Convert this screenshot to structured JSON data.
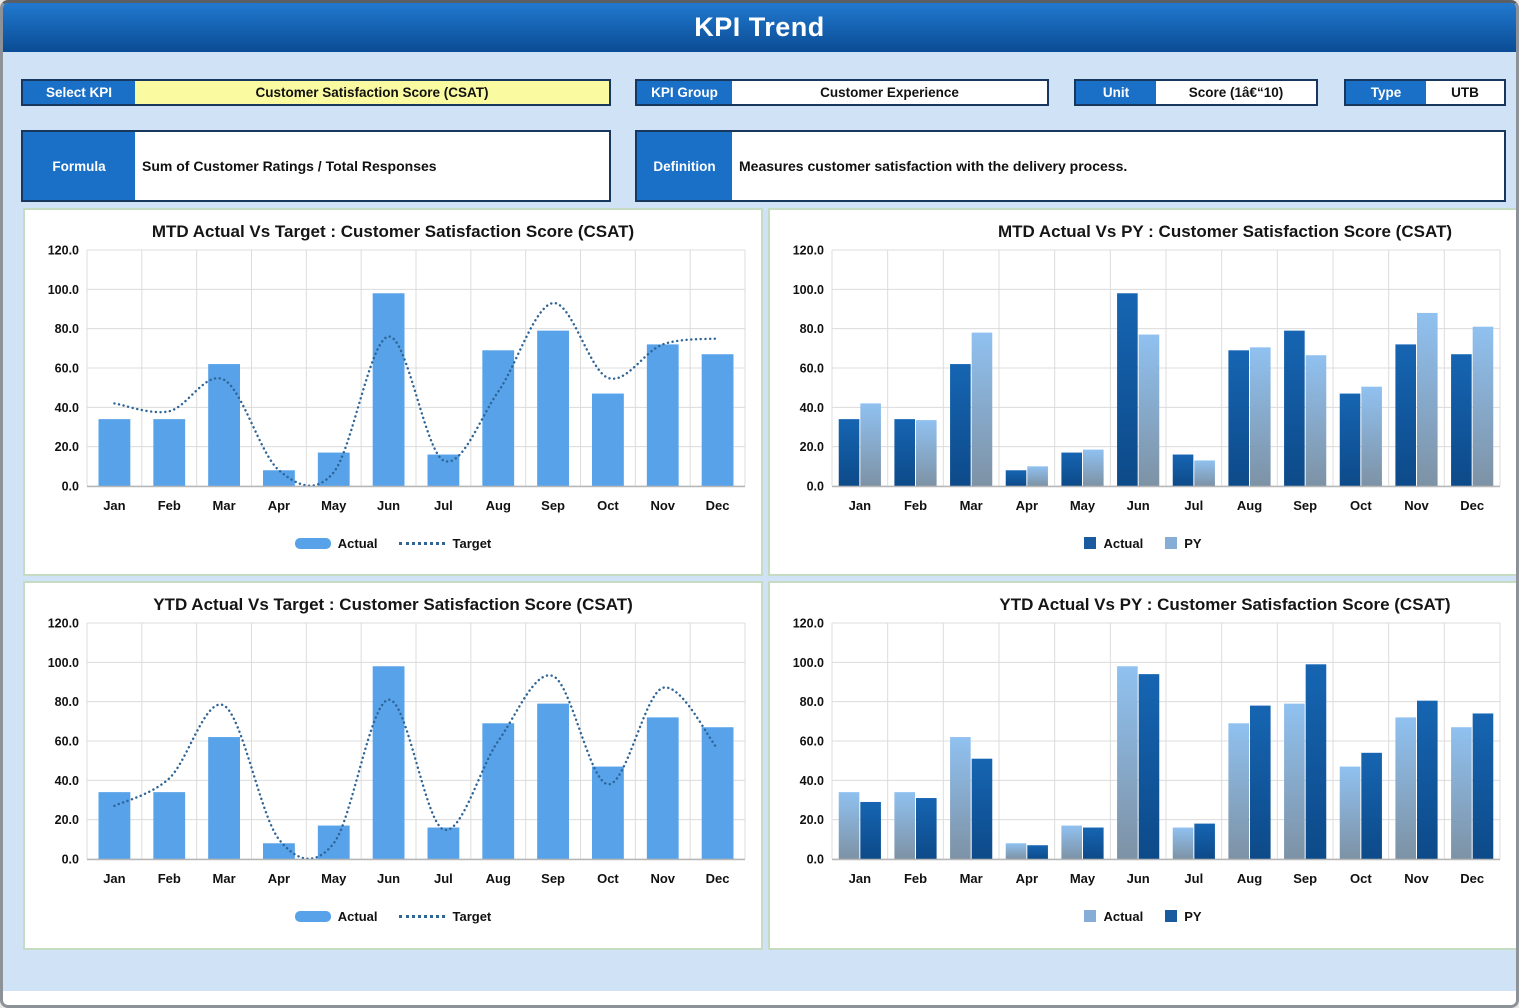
{
  "header": {
    "title": "KPI Trend"
  },
  "controls": {
    "select_kpi": {
      "label": "Select KPI",
      "value": "Customer Satisfaction Score (CSAT)"
    },
    "kpi_group": {
      "label": "KPI Group",
      "value": "Customer Experience"
    },
    "unit": {
      "label": "Unit",
      "value": "Score (1â€“10)"
    },
    "type": {
      "label": "Type",
      "value": "UTB"
    },
    "formula": {
      "label": "Formula",
      "value": "Sum of Customer Ratings / Total Responses"
    },
    "definition": {
      "label": "Definition",
      "value": "Measures customer satisfaction with the delivery process."
    }
  },
  "colors": {
    "page_bg": "#cfe2f6",
    "label_blue": "#1a70c7",
    "navy_border": "#17375e",
    "select_value_bg": "#fafaa0",
    "grid": "#dcdcdc",
    "axis": "#b7b7b7",
    "bar_light": "#57a2e8",
    "bar_dark_top": "#1665b2",
    "bar_dark_bottom": "#0d4a89",
    "bar_grad_top": "#90c1f0",
    "bar_grad_bottom": "#7d92a5",
    "target_line": "#2e6496",
    "legend_dark_swatch": "#1a5a9e",
    "legend_light_swatch": "#85add6"
  },
  "chart_data": [
    {
      "type": "bar",
      "title": "MTD Actual Vs Target : Customer Satisfaction Score (CSAT)",
      "categories": [
        "Jan",
        "Feb",
        "Mar",
        "Apr",
        "May",
        "Jun",
        "Jul",
        "Aug",
        "Sep",
        "Oct",
        "Nov",
        "Dec"
      ],
      "ylim": [
        0,
        120
      ],
      "ytick_step": 20,
      "grid": true,
      "legend_position": "bottom",
      "series": [
        {
          "name": "Actual",
          "kind": "bar",
          "style": "light",
          "values": [
            34,
            34,
            62,
            8,
            17,
            98,
            16,
            69,
            79,
            47,
            72,
            67
          ]
        },
        {
          "name": "Target",
          "kind": "line",
          "style": "dotted",
          "values": [
            42,
            38,
            54,
            8,
            7,
            76,
            13,
            48,
            93,
            55,
            72,
            75
          ]
        }
      ]
    },
    {
      "type": "bar",
      "title": "MTD Actual Vs PY : Customer Satisfaction Score (CSAT)",
      "categories": [
        "Jan",
        "Feb",
        "Mar",
        "Apr",
        "May",
        "Jun",
        "Jul",
        "Aug",
        "Sep",
        "Oct",
        "Nov",
        "Dec"
      ],
      "ylim": [
        0,
        120
      ],
      "ytick_step": 20,
      "grid": true,
      "legend_position": "bottom",
      "series": [
        {
          "name": "Actual",
          "kind": "bar",
          "style": "dark",
          "values": [
            34,
            34,
            62,
            8,
            17,
            98,
            16,
            69,
            79,
            47,
            72,
            67
          ]
        },
        {
          "name": "PY",
          "kind": "bar",
          "style": "grad",
          "values": [
            42,
            33.5,
            78,
            10,
            18.5,
            77,
            13,
            70.5,
            66.5,
            50.5,
            88,
            81
          ]
        }
      ]
    },
    {
      "type": "bar",
      "title": "YTD Actual Vs Target : Customer Satisfaction Score (CSAT)",
      "categories": [
        "Jan",
        "Feb",
        "Mar",
        "Apr",
        "May",
        "Jun",
        "Jul",
        "Aug",
        "Sep",
        "Oct",
        "Nov",
        "Dec"
      ],
      "ylim": [
        0,
        120
      ],
      "ytick_step": 20,
      "grid": true,
      "legend_position": "bottom",
      "series": [
        {
          "name": "Actual",
          "kind": "bar",
          "style": "light",
          "values": [
            34,
            34,
            62,
            8,
            17,
            98,
            16,
            69,
            79,
            47,
            72,
            67
          ]
        },
        {
          "name": "Target",
          "kind": "line",
          "style": "dotted",
          "values": [
            27,
            41,
            78,
            10,
            8,
            81,
            15,
            60,
            93,
            38,
            87,
            56
          ]
        }
      ]
    },
    {
      "type": "bar",
      "title": "YTD Actual Vs PY : Customer Satisfaction Score (CSAT)",
      "categories": [
        "Jan",
        "Feb",
        "Mar",
        "Apr",
        "May",
        "Jun",
        "Jul",
        "Aug",
        "Sep",
        "Oct",
        "Nov",
        "Dec"
      ],
      "ylim": [
        0,
        120
      ],
      "ytick_step": 20,
      "grid": true,
      "legend_position": "bottom",
      "series": [
        {
          "name": "Actual",
          "kind": "bar",
          "style": "grad",
          "values": [
            34,
            34,
            62,
            8,
            17,
            98,
            16,
            69,
            79,
            47,
            72,
            67
          ]
        },
        {
          "name": "PY",
          "kind": "bar",
          "style": "dark",
          "values": [
            29,
            31,
            51,
            7,
            16,
            94,
            18,
            78,
            99,
            54,
            80.5,
            74
          ]
        }
      ]
    }
  ]
}
